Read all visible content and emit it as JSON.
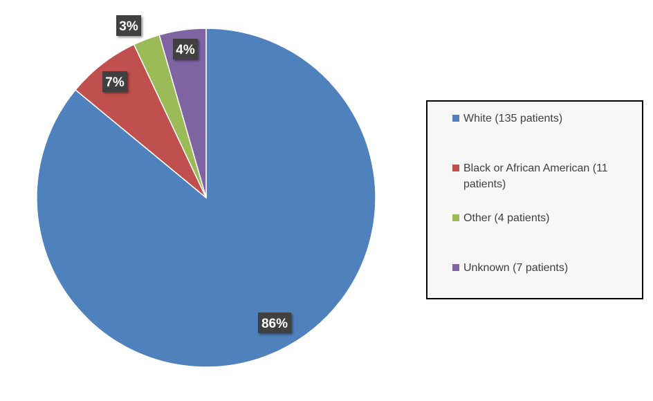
{
  "chart_data": {
    "type": "pie",
    "title": "",
    "categories": [
      "White (135 patients)",
      "Black or African American (11 patients)",
      "Other (4 patients)",
      "Unknown (7 patients)"
    ],
    "values": [
      135,
      11,
      4,
      7
    ],
    "data_labels": [
      "86%",
      "7%",
      "3%",
      "4%"
    ],
    "colors": [
      "#4f81bd",
      "#c0504d",
      "#9bbb59",
      "#8064a2"
    ],
    "start_angle": "12 o'clock",
    "direction": "clockwise",
    "legend_placement": "right"
  }
}
